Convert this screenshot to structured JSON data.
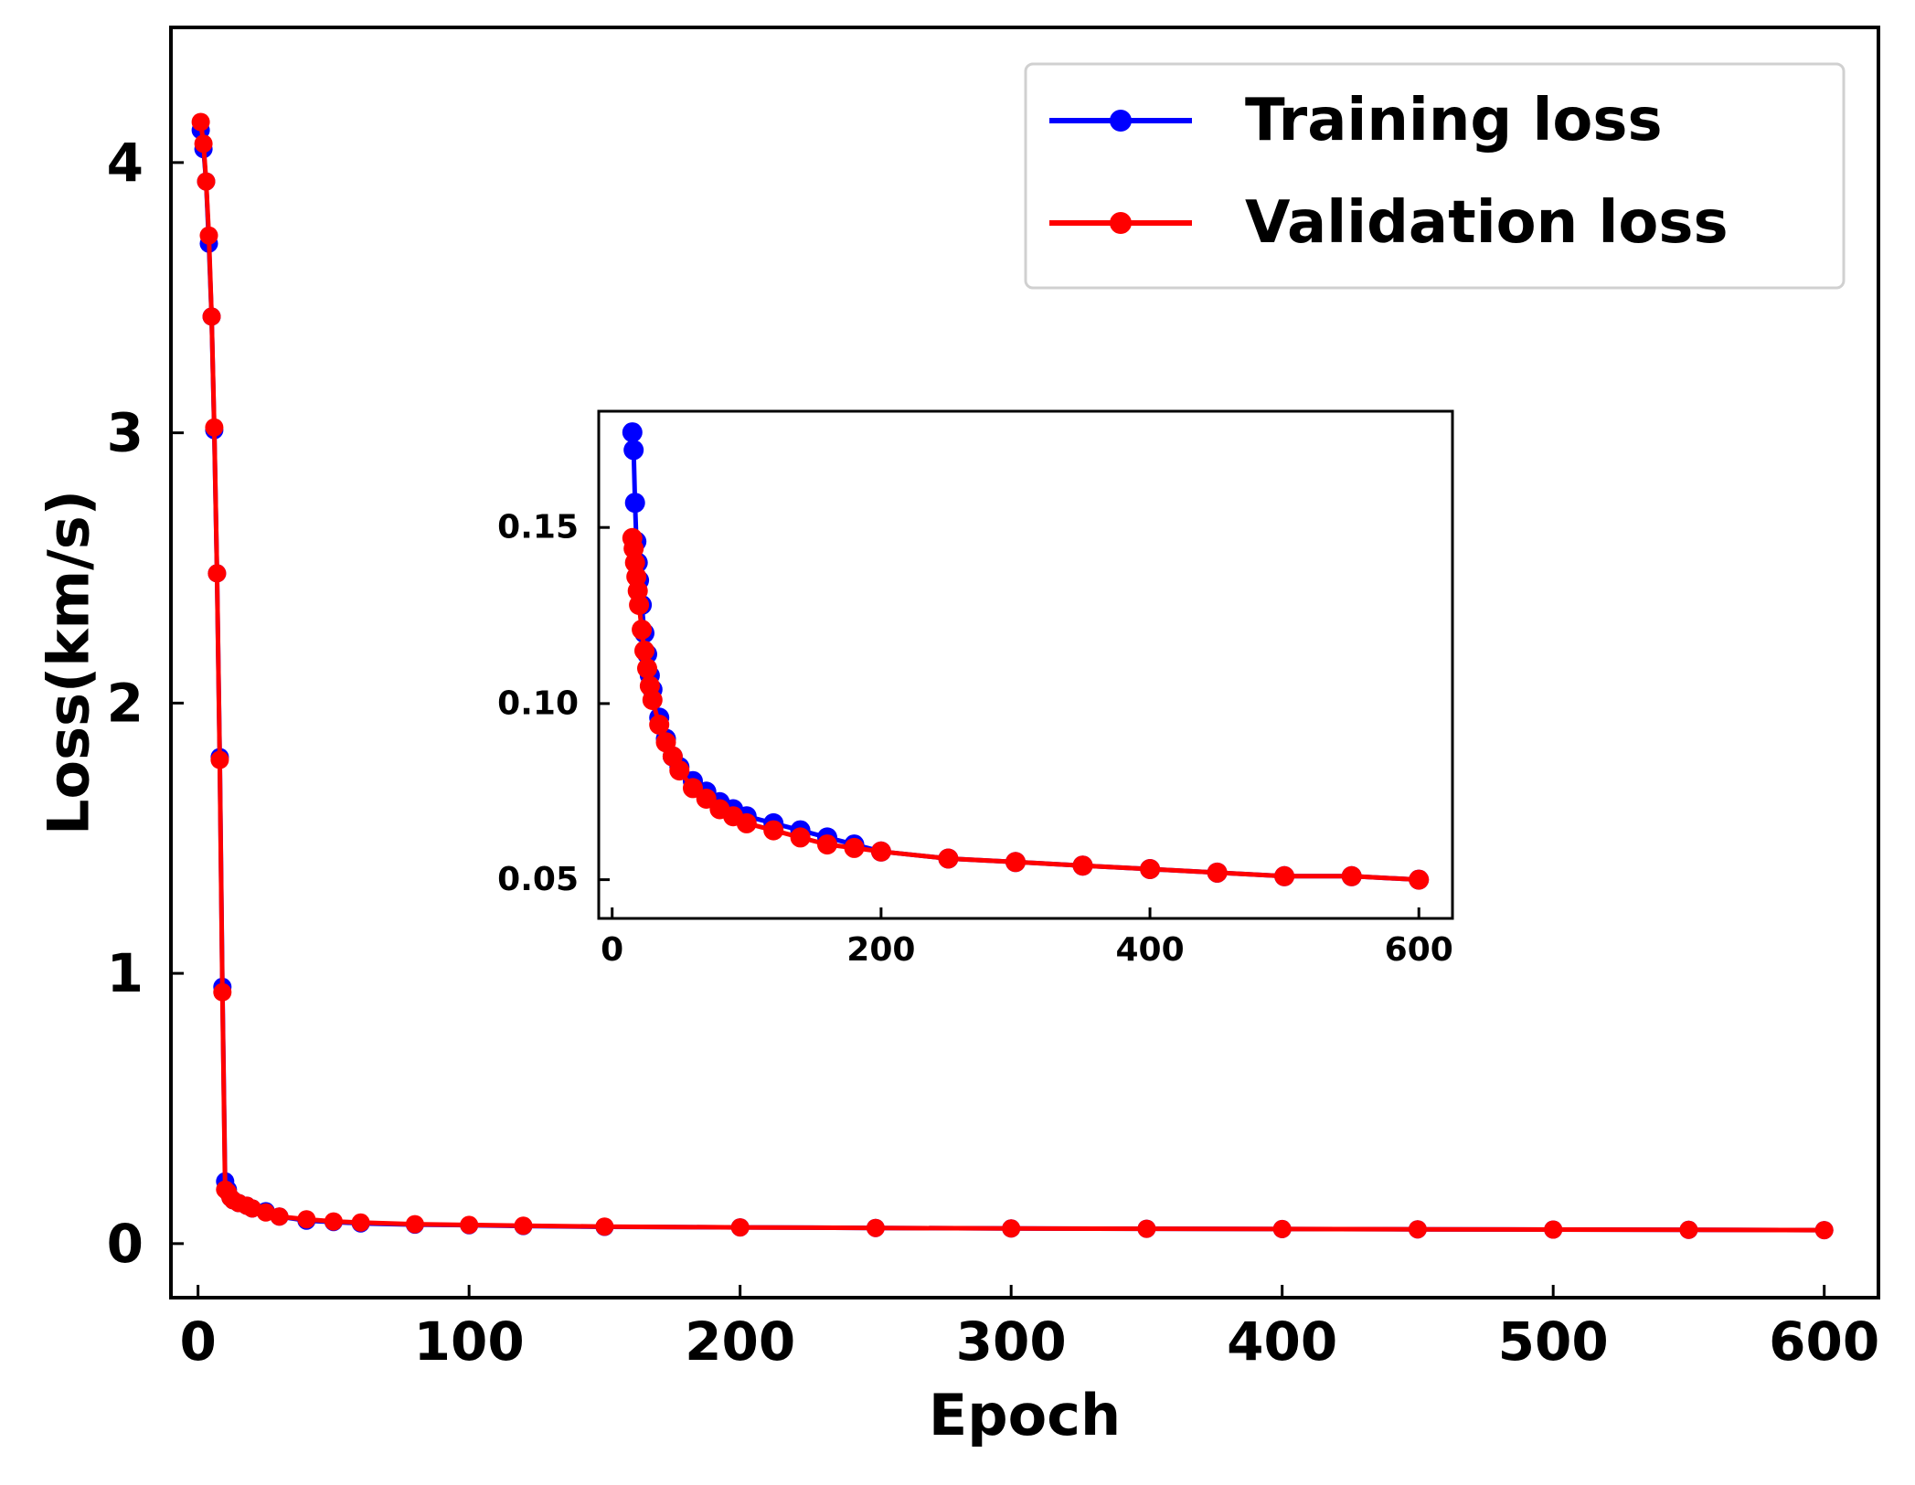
{
  "chart_data": [
    {
      "type": "line",
      "role": "main",
      "xlabel": "Epoch",
      "ylabel": "Loss(km/s)",
      "xlim": [
        -10,
        620
      ],
      "ylim": [
        -0.2,
        4.5
      ],
      "x_ticks": [
        0,
        100,
        200,
        300,
        400,
        500,
        600
      ],
      "y_ticks": [
        0,
        1,
        2,
        3,
        4
      ],
      "grid": false,
      "legend_position": "top-right",
      "series": [
        {
          "name": "Training loss",
          "color": "#0000ff",
          "marker": "circle",
          "x": [
            1,
            2,
            3,
            4,
            5,
            6,
            7,
            8,
            9,
            10,
            11,
            12,
            13,
            15,
            18,
            20,
            25,
            30,
            40,
            50,
            60,
            80,
            100,
            120,
            150,
            200,
            250,
            300,
            350,
            400,
            450,
            500,
            550,
            600
          ],
          "values": [
            4.12,
            4.05,
            3.93,
            3.7,
            3.43,
            3.01,
            2.48,
            1.8,
            0.95,
            0.23,
            0.2,
            0.17,
            0.16,
            0.15,
            0.14,
            0.13,
            0.12,
            0.1,
            0.085,
            0.08,
            0.075,
            0.07,
            0.068,
            0.065,
            0.062,
            0.06,
            0.058,
            0.056,
            0.055,
            0.054,
            0.053,
            0.052,
            0.051,
            0.05
          ]
        },
        {
          "name": "Validation loss",
          "color": "#ff0000",
          "marker": "circle",
          "x": [
            1,
            2,
            3,
            4,
            5,
            6,
            7,
            8,
            9,
            10,
            11,
            12,
            13,
            15,
            18,
            20,
            25,
            30,
            40,
            50,
            60,
            80,
            100,
            120,
            150,
            200,
            250,
            300,
            350,
            400,
            450,
            500,
            550,
            600
          ],
          "values": [
            4.15,
            4.07,
            3.93,
            3.73,
            3.43,
            3.02,
            2.48,
            1.79,
            0.93,
            0.2,
            0.19,
            0.17,
            0.16,
            0.15,
            0.14,
            0.13,
            0.115,
            0.1,
            0.09,
            0.082,
            0.078,
            0.072,
            0.069,
            0.066,
            0.063,
            0.06,
            0.058,
            0.056,
            0.055,
            0.054,
            0.053,
            0.052,
            0.051,
            0.05
          ]
        }
      ]
    },
    {
      "type": "line",
      "role": "inset",
      "xlim": [
        -10,
        625
      ],
      "ylim": [
        0.039,
        0.183
      ],
      "x_ticks": [
        0,
        200,
        400,
        600
      ],
      "y_ticks": [
        "0.05",
        "0.10",
        "0.15"
      ],
      "grid": false,
      "series": [
        {
          "name": "Training loss",
          "color": "#0000ff",
          "x": [
            15,
            16,
            17,
            18,
            19,
            20,
            22,
            24,
            26,
            28,
            30,
            35,
            40,
            45,
            50,
            60,
            70,
            80,
            90,
            100,
            120,
            140,
            160,
            180,
            200,
            250,
            300,
            350,
            400,
            450,
            500,
            550,
            600
          ],
          "values": [
            0.177,
            0.172,
            0.157,
            0.146,
            0.14,
            0.135,
            0.128,
            0.12,
            0.114,
            0.108,
            0.104,
            0.096,
            0.09,
            0.085,
            0.082,
            0.078,
            0.075,
            0.072,
            0.07,
            0.068,
            0.066,
            0.064,
            0.062,
            0.06,
            0.058,
            0.056,
            0.055,
            0.054,
            0.053,
            0.052,
            0.051,
            0.051,
            0.05
          ]
        },
        {
          "name": "Validation loss",
          "color": "#ff0000",
          "x": [
            15,
            16,
            17,
            18,
            19,
            20,
            22,
            24,
            26,
            28,
            30,
            35,
            40,
            45,
            50,
            60,
            70,
            80,
            90,
            100,
            120,
            140,
            160,
            180,
            200,
            250,
            300,
            350,
            400,
            450,
            500,
            550,
            600
          ],
          "values": [
            0.147,
            0.144,
            0.14,
            0.136,
            0.132,
            0.128,
            0.121,
            0.115,
            0.11,
            0.105,
            0.101,
            0.094,
            0.089,
            0.085,
            0.081,
            0.076,
            0.073,
            0.07,
            0.068,
            0.066,
            0.064,
            0.062,
            0.06,
            0.059,
            0.058,
            0.056,
            0.055,
            0.054,
            0.053,
            0.052,
            0.051,
            0.051,
            0.05
          ]
        }
      ]
    }
  ]
}
